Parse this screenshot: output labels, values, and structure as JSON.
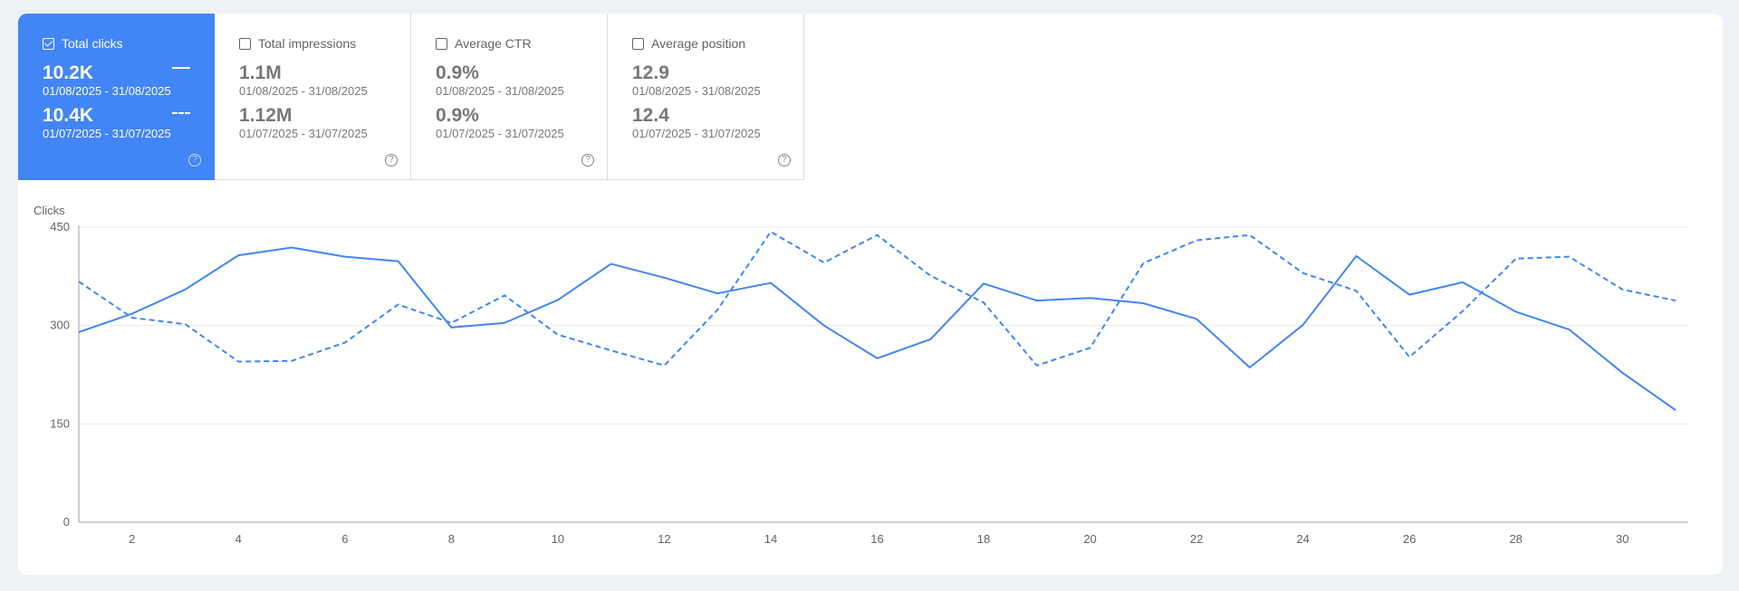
{
  "metrics": [
    {
      "label": "Total clicks",
      "checked": true,
      "current_value": "10.2K",
      "current_range": "01/08/2025 - 31/08/2025",
      "previous_value": "10.4K",
      "previous_range": "01/07/2025 - 31/07/2025",
      "help_icon": "?"
    },
    {
      "label": "Total impressions",
      "checked": false,
      "current_value": "1.1M",
      "current_range": "01/08/2025 - 31/08/2025",
      "previous_value": "1.12M",
      "previous_range": "01/07/2025 - 31/07/2025",
      "help_icon": "?"
    },
    {
      "label": "Average CTR",
      "checked": false,
      "current_value": "0.9%",
      "current_range": "01/08/2025 - 31/08/2025",
      "previous_value": "0.9%",
      "previous_range": "01/07/2025 - 31/07/2025",
      "help_icon": "?"
    },
    {
      "label": "Average position",
      "checked": false,
      "current_value": "12.9",
      "current_range": "01/08/2025 - 31/08/2025",
      "previous_value": "12.4",
      "previous_range": "01/07/2025 - 31/07/2025",
      "help_icon": "?"
    }
  ],
  "colors": {
    "accent": "#4285f4",
    "grid": "#e8eaed",
    "axis": "#9aa0a6"
  },
  "chart_data": {
    "type": "line",
    "ylabel": "Clicks",
    "ylim": [
      0,
      450
    ],
    "yticks": [
      0,
      150,
      300,
      450
    ],
    "xlim": [
      1,
      31
    ],
    "xticks": [
      2,
      4,
      6,
      8,
      10,
      12,
      14,
      16,
      18,
      20,
      22,
      24,
      26,
      28,
      30
    ],
    "grid": true,
    "x": [
      1,
      2,
      3,
      4,
      5,
      6,
      7,
      8,
      9,
      10,
      11,
      12,
      13,
      14,
      15,
      16,
      17,
      18,
      19,
      20,
      21,
      22,
      23,
      24,
      25,
      26,
      27,
      28,
      29,
      30,
      31
    ],
    "series": [
      {
        "style": "solid",
        "values": [
          290,
          318,
          355,
          407,
          419,
          405,
          398,
          297,
          304,
          339,
          394,
          373,
          349,
          365,
          300,
          250,
          279,
          364,
          338,
          342,
          334,
          310,
          236,
          301,
          406,
          347,
          366,
          321,
          294,
          228,
          171
        ]
      },
      {
        "style": "dashed",
        "values": [
          367,
          312,
          302,
          245,
          246,
          274,
          332,
          304,
          346,
          286,
          262,
          239,
          324,
          443,
          396,
          438,
          376,
          335,
          239,
          266,
          395,
          430,
          438,
          380,
          353,
          252,
          322,
          402,
          405,
          355,
          338
        ]
      }
    ]
  }
}
